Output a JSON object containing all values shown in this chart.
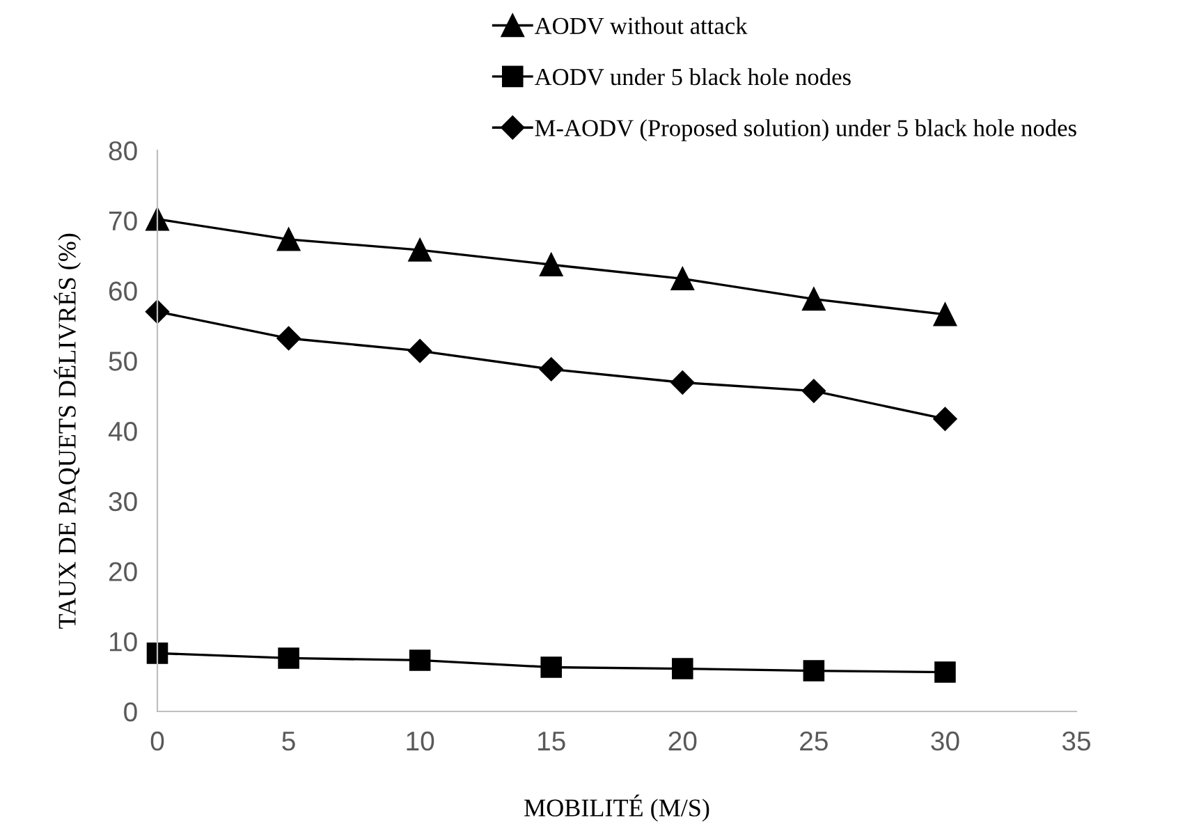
{
  "chart_data": {
    "type": "line",
    "xlabel": "MOBILITÉ (M/S)",
    "ylabel": "TAUX DE PAQUETS DÉLIVRÉS (%)",
    "x": [
      0,
      5,
      10,
      15,
      20,
      25,
      30
    ],
    "series": [
      {
        "name": "AODV without attack",
        "color": "#000000",
        "marker": "triangle",
        "values": [
          70.2,
          67.3,
          65.8,
          63.7,
          61.7,
          58.8,
          56.6
        ]
      },
      {
        "name": "AODV under 5 black hole nodes",
        "color": "#000000",
        "marker": "square",
        "values": [
          8.3,
          7.6,
          7.3,
          6.3,
          6.1,
          5.8,
          5.6
        ]
      },
      {
        "name": "M-AODV (Proposed solution) under 5 black hole nodes",
        "color": "#000000",
        "marker": "diamond",
        "values": [
          57,
          53.2,
          51.4,
          48.8,
          46.9,
          45.7,
          41.7
        ]
      }
    ],
    "xlim": [
      0,
      35
    ],
    "xticks": [
      0,
      5,
      10,
      15,
      20,
      25,
      30,
      35
    ],
    "ylim": [
      0,
      80
    ],
    "yticks": [
      0,
      10,
      20,
      30,
      40,
      50,
      60,
      70,
      80
    ],
    "grid": false,
    "legend": "top right",
    "line_style": "solid"
  }
}
